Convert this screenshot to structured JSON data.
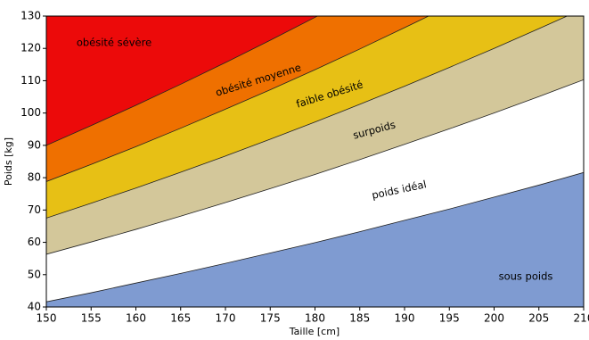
{
  "chart_data": {
    "type": "bands",
    "xlabel": "Taille [cm]",
    "ylabel": "Poids [kg]",
    "x": [
      150,
      155,
      160,
      165,
      170,
      175,
      180,
      185,
      190,
      195,
      200,
      205,
      210
    ],
    "bands": [
      {
        "name": "sous poids",
        "color": "#7f9bd1",
        "upper": [
          41.6,
          44.4,
          47.4,
          50.4,
          53.5,
          56.7,
          59.9,
          63.3,
          66.8,
          70.3,
          74.0,
          77.7,
          81.6
        ]
      },
      {
        "name": "poids idéal",
        "color": "#ffffff",
        "upper": [
          56.3,
          60.1,
          64.0,
          68.1,
          72.3,
          76.6,
          81.0,
          85.6,
          90.3,
          95.1,
          100.0,
          105.1,
          110.3
        ]
      },
      {
        "name": "surpoids",
        "color": "#d3c79a",
        "upper": [
          67.5,
          72.1,
          76.8,
          81.7,
          86.7,
          91.9,
          97.2,
          102.7,
          108.3,
          114.1,
          120.0,
          126.1,
          132.3
        ]
      },
      {
        "name": "faible obésité",
        "color": "#e7c015",
        "upper": [
          78.8,
          84.1,
          89.6,
          95.3,
          101.2,
          107.2,
          113.4,
          119.8,
          126.4,
          133.1,
          140.0,
          147.1,
          154.4
        ]
      },
      {
        "name": "obésité moyenne",
        "color": "#ef7000",
        "upper": [
          90.0,
          96.1,
          102.4,
          108.9,
          115.6,
          122.5,
          129.6,
          136.9,
          144.4,
          152.1,
          160.0,
          168.1,
          176.4
        ]
      },
      {
        "name": "obésité sévère",
        "color": "#ec0a0a"
      }
    ],
    "xlim": [
      150,
      210
    ],
    "ylim": [
      40,
      130
    ],
    "xticks": [
      150,
      155,
      160,
      165,
      170,
      175,
      180,
      185,
      190,
      195,
      200,
      205,
      210
    ],
    "yticks": [
      40,
      50,
      60,
      70,
      80,
      90,
      100,
      110,
      120,
      130
    ]
  }
}
